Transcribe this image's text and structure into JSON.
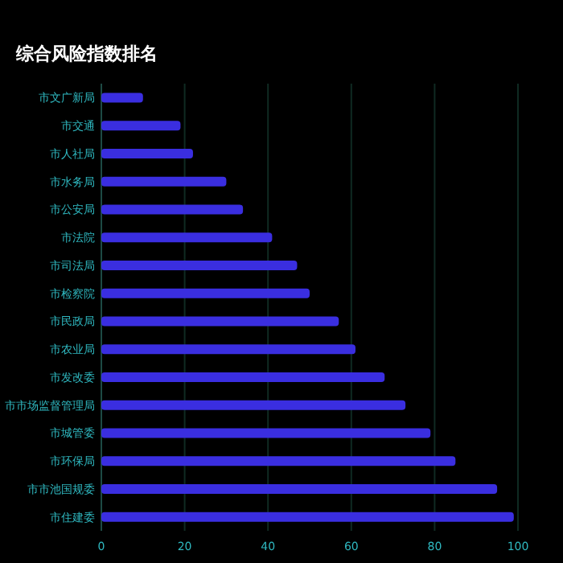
{
  "chart_data": {
    "type": "bar",
    "orientation": "horizontal",
    "title": "综合风险指数排名",
    "categories": [
      "市文广新局",
      "市交通",
      "市人社局",
      "市水务局",
      "市公安局",
      "市法院",
      "市司法局",
      "市检察院",
      "市民政局",
      "市农业局",
      "市发改委",
      "市市场监督管理局",
      "市城管委",
      "市环保局",
      "市市池国规委",
      "市住建委"
    ],
    "series": [
      {
        "color": "#3a2ee0",
        "values": [
          10,
          19,
          22,
          30,
          34,
          41,
          47,
          50,
          57,
          61,
          68,
          73,
          79,
          85,
          95,
          99
        ]
      }
    ],
    "xlim": [
      0,
      100
    ],
    "xticks": [
      0,
      20,
      40,
      60,
      80,
      100
    ],
    "grid": "x"
  }
}
